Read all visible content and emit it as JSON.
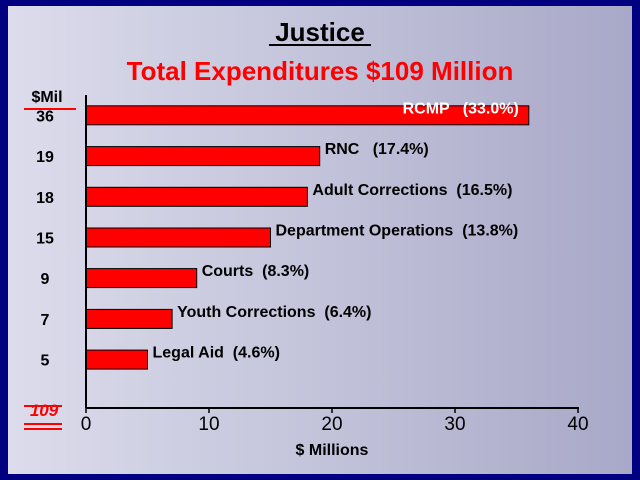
{
  "colors": {
    "frame": "#000080",
    "bar": "#ff0000",
    "bar_stroke": "#000000",
    "accent": "#ff0000",
    "text": "#000000",
    "inside_label": "#ffffff"
  },
  "chart_data": {
    "type": "bar",
    "orientation": "horizontal",
    "title": "Justice",
    "subtitle": "Total Expenditures $109 Million",
    "xlabel": "$ Millions",
    "ylabel": "$Mil",
    "xlim": [
      0,
      40
    ],
    "xticks": [
      0,
      10,
      20,
      30,
      40
    ],
    "grid": false,
    "legend": "none",
    "total_label": "109",
    "categories": [
      "RCMP",
      "RNC",
      "Adult Corrections",
      "Department Operations",
      "Courts",
      "Youth Corrections",
      "Legal Aid"
    ],
    "values": [
      36,
      19,
      18,
      15,
      9,
      7,
      5
    ],
    "value_labels": [
      "36",
      "19",
      "18",
      "15",
      "9",
      "7",
      "5"
    ],
    "bar_labels": [
      "RCMP   (33.0%)",
      "RNC   (17.4%)",
      "Adult Corrections  (16.5%)",
      "Department Operations  (13.8%)",
      "Courts  (8.3%)",
      "Youth Corrections  (6.4%)",
      "Legal Aid  (4.6%)"
    ]
  }
}
